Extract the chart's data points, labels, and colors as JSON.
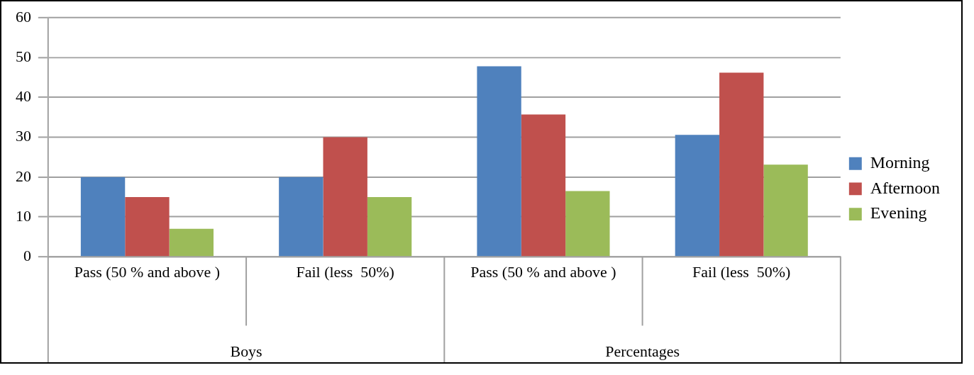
{
  "chart_data": {
    "type": "bar",
    "categories": [
      "Pass (50 % and above )",
      "Fail (less  50%)",
      "Pass (50 % and above )",
      "Fail (less  50%)"
    ],
    "series": [
      {
        "name": "Morning",
        "color": "#4f81bd",
        "values": [
          20,
          20,
          47.8,
          30.6
        ]
      },
      {
        "name": "Afternoon",
        "color": "#c0504d",
        "values": [
          15,
          30,
          35.7,
          46.2
        ]
      },
      {
        "name": "Evening",
        "color": "#9bbb59",
        "values": [
          7,
          15,
          16.5,
          23.1
        ]
      }
    ],
    "ylim": [
      0,
      60
    ],
    "yticks": [
      0,
      10,
      20,
      30,
      40,
      50,
      60
    ],
    "grid": "y",
    "legend": "right",
    "annotations": [
      "Boys",
      "Percentages"
    ]
  }
}
